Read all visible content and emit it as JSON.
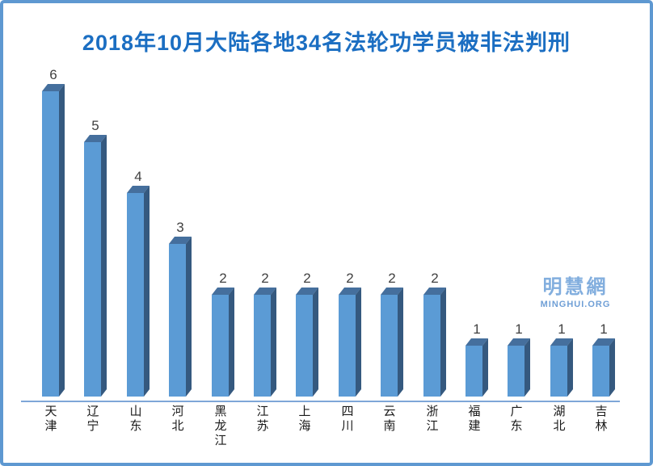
{
  "title": "2018年10月大陆各地34名法轮功学员被非法判刑",
  "watermark": {
    "chinese": "明慧網",
    "latin": "MINGHUI.ORG"
  },
  "chart_data": {
    "type": "bar",
    "title": "2018年10月大陆各地34名法轮功学员被非法判刑",
    "categories": [
      "天津",
      "辽宁",
      "山东",
      "河北",
      "黑龙江",
      "江苏",
      "上海",
      "四川",
      "云南",
      "浙江",
      "福建",
      "广东",
      "湖北",
      "吉林"
    ],
    "values": [
      6,
      5,
      4,
      3,
      2,
      2,
      2,
      2,
      2,
      2,
      1,
      1,
      1,
      1
    ],
    "total": 34,
    "xlabel": "",
    "ylabel": "",
    "ylim": [
      0,
      6
    ],
    "grid": false,
    "legend": "none",
    "bar_value_labels_shown": true,
    "bar_style": "3d-oblique",
    "colors": {
      "bar_front": "#5b9bd5",
      "bar_top": "#456f9d",
      "bar_side": "#35597f",
      "axis_line": "#7ea6d8",
      "title_text": "#1b6ec2",
      "value_label_text": "#404040",
      "category_label_text": "#1a1a1a",
      "watermark_chinese": "#82aede",
      "watermark_latin": "#6f9fd6",
      "frame_border": "#5e98d1",
      "background": "#ffffff"
    }
  }
}
